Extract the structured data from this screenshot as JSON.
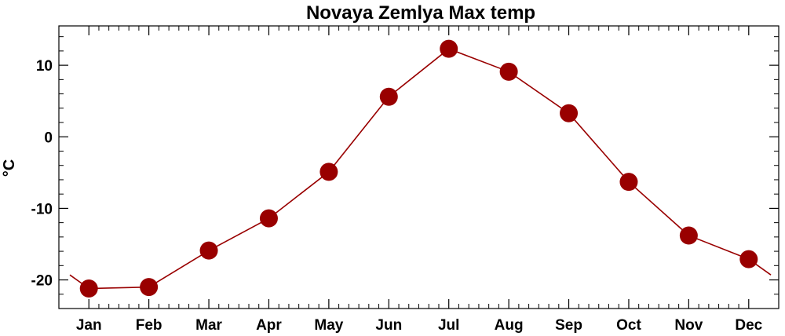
{
  "chart_data": {
    "type": "line",
    "title": "Novaya Zemlya Max temp",
    "xlabel": "",
    "ylabel": "°C",
    "categories": [
      "Jan",
      "Feb",
      "Mar",
      "Apr",
      "May",
      "Jun",
      "Jul",
      "Aug",
      "Sep",
      "Oct",
      "Nov",
      "Dec"
    ],
    "series": [
      {
        "values": [
          -21.2,
          -21.0,
          -15.9,
          -11.4,
          -4.9,
          5.6,
          12.3,
          9.1,
          3.3,
          -6.3,
          -13.8,
          -17.1
        ]
      }
    ],
    "ylim": [
      -24,
      15.5
    ],
    "yticks": [
      -20,
      -10,
      0,
      10
    ],
    "ytick_labels": [
      "-20",
      "-10",
      "0",
      "10"
    ],
    "edge_values": {
      "start": -19.3,
      "end": -19.3
    },
    "grid": false,
    "colors": {
      "series": "#990000",
      "marker": "#990000",
      "axes": "#000000"
    }
  }
}
